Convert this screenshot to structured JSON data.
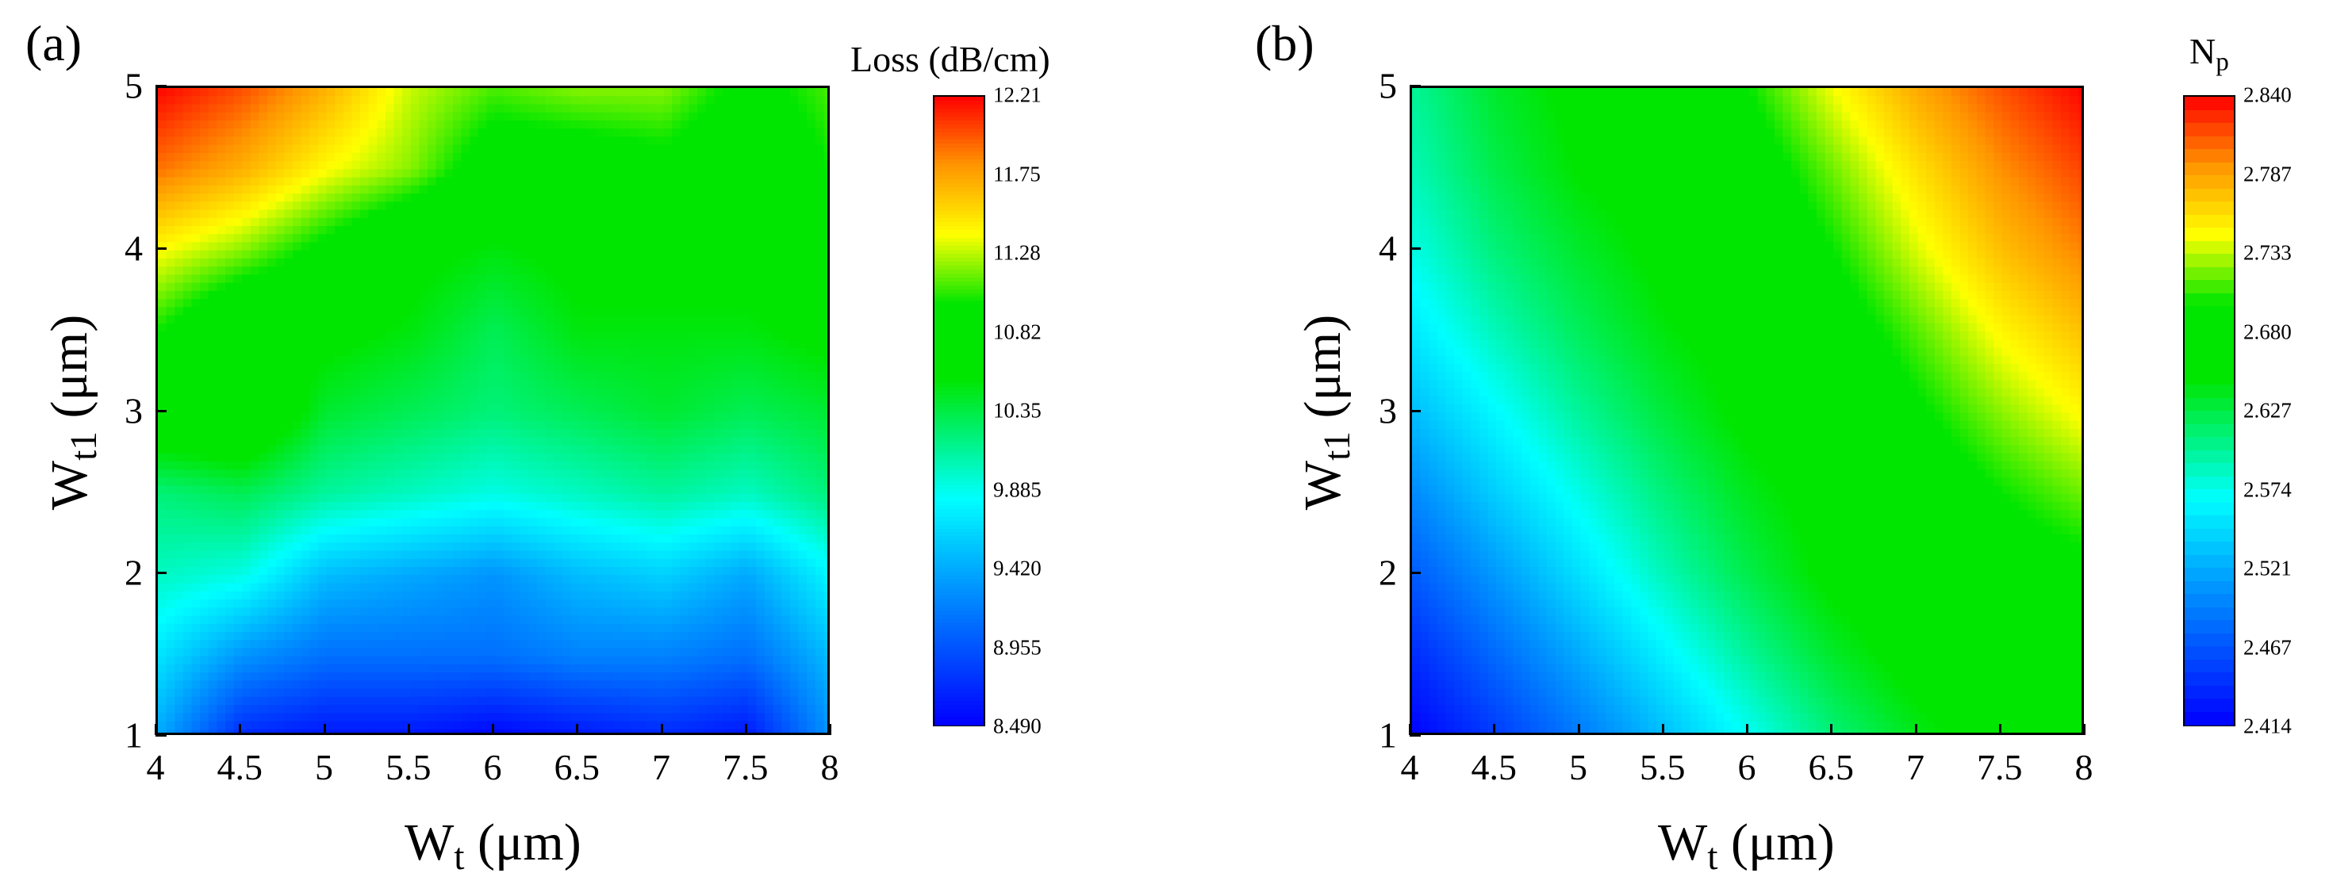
{
  "figure": {
    "panel_a_label": "(a)",
    "panel_b_label": "(b)"
  },
  "chart_data": [
    {
      "type": "heatmap",
      "panel": "(a)",
      "title": "",
      "colorbar_title": "Loss (dB/cm)",
      "xlabel_main": "W",
      "xlabel_sub": "t",
      "xlabel_unit": "(μm)",
      "ylabel_main": "W",
      "ylabel_sub": "t1",
      "ylabel_unit": "(μm)",
      "xlim": [
        4,
        8
      ],
      "ylim": [
        1,
        5
      ],
      "x_ticks": [
        "4",
        "4.5",
        "5",
        "5.5",
        "6",
        "6.5",
        "7",
        "7.5",
        "8"
      ],
      "y_ticks": [
        "1",
        "2",
        "3",
        "4",
        "5"
      ],
      "colorbar_ticks": [
        "12.21",
        "11.75",
        "11.28",
        "10.82",
        "10.35",
        "9.885",
        "9.420",
        "8.955",
        "8.490"
      ],
      "value_range": [
        8.49,
        12.21
      ],
      "x": [
        4,
        4.5,
        5,
        5.5,
        6,
        6.5,
        7,
        7.5,
        8
      ],
      "y": [
        1,
        1.5,
        2,
        2.5,
        3,
        3.5,
        4,
        4.5,
        5
      ],
      "z": [
        [
          9.4,
          8.7,
          8.6,
          8.6,
          8.5,
          8.6,
          8.7,
          8.6,
          9.3
        ],
        [
          9.7,
          9.3,
          9.1,
          9.1,
          9.1,
          9.2,
          9.2,
          9.1,
          9.5
        ],
        [
          10.0,
          9.9,
          9.5,
          9.4,
          9.3,
          9.5,
          9.6,
          9.4,
          9.8
        ],
        [
          10.2,
          10.3,
          10.1,
          10.0,
          9.9,
          10.0,
          10.1,
          10.0,
          10.2
        ],
        [
          10.8,
          10.9,
          10.4,
          10.3,
          10.2,
          10.3,
          10.4,
          10.3,
          10.4
        ],
        [
          11.0,
          10.6,
          10.6,
          10.5,
          10.3,
          10.5,
          10.5,
          10.5,
          10.6
        ],
        [
          11.4,
          11.2,
          10.9,
          10.6,
          10.5,
          10.6,
          10.6,
          10.6,
          10.7
        ],
        [
          11.9,
          11.7,
          11.4,
          11.2,
          10.8,
          10.8,
          10.9,
          10.7,
          11.0
        ],
        [
          12.2,
          12.0,
          11.7,
          11.3,
          11.1,
          11.2,
          11.2,
          10.9,
          11.1
        ]
      ]
    },
    {
      "type": "heatmap",
      "panel": "(b)",
      "title": "",
      "colorbar_title_main": "N",
      "colorbar_title_sub": "p",
      "xlabel_main": "W",
      "xlabel_sub": "t",
      "xlabel_unit": "(μm)",
      "ylabel_main": "W",
      "ylabel_sub": "t1",
      "ylabel_unit": "(μm)",
      "xlim": [
        4,
        8
      ],
      "ylim": [
        1,
        5
      ],
      "x_ticks": [
        "4",
        "4.5",
        "5",
        "5.5",
        "6",
        "6.5",
        "7",
        "7.5",
        "8"
      ],
      "y_ticks": [
        "1",
        "2",
        "3",
        "4",
        "5"
      ],
      "colorbar_ticks": [
        "2.840",
        "2.787",
        "2.733",
        "2.680",
        "2.627",
        "2.574",
        "2.521",
        "2.467",
        "2.414"
      ],
      "value_range": [
        2.414,
        2.84
      ],
      "x": [
        4,
        4.5,
        5,
        5.5,
        6,
        6.5,
        7,
        7.5,
        8
      ],
      "y": [
        1,
        1.5,
        2,
        2.5,
        3,
        3.5,
        4,
        4.5,
        5
      ],
      "z": [
        [
          2.414,
          2.45,
          2.49,
          2.53,
          2.57,
          2.61,
          2.64,
          2.66,
          2.66
        ],
        [
          2.44,
          2.48,
          2.52,
          2.56,
          2.6,
          2.635,
          2.66,
          2.665,
          2.67
        ],
        [
          2.47,
          2.51,
          2.55,
          2.59,
          2.625,
          2.655,
          2.665,
          2.68,
          2.69
        ],
        [
          2.5,
          2.54,
          2.575,
          2.61,
          2.64,
          2.66,
          2.675,
          2.7,
          2.72
        ],
        [
          2.53,
          2.565,
          2.6,
          2.63,
          2.655,
          2.665,
          2.695,
          2.725,
          2.75
        ],
        [
          2.555,
          2.59,
          2.62,
          2.645,
          2.66,
          2.68,
          2.715,
          2.75,
          2.775
        ],
        [
          2.575,
          2.61,
          2.635,
          2.655,
          2.665,
          2.7,
          2.74,
          2.775,
          2.8
        ],
        [
          2.59,
          2.625,
          2.65,
          2.66,
          2.68,
          2.72,
          2.76,
          2.795,
          2.82
        ],
        [
          2.6,
          2.635,
          2.655,
          2.665,
          2.7,
          2.745,
          2.785,
          2.815,
          2.84
        ]
      ]
    }
  ]
}
